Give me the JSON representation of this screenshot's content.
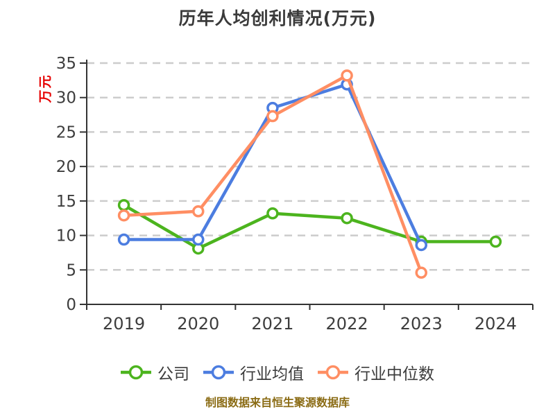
{
  "title": "历年人均创利情况(万元)",
  "footer": "制图数据来自恒生聚源数据库",
  "colors": {
    "background": "#ffffff",
    "title_text": "#3a3a3a",
    "axis_line": "#333333",
    "tick_label": "#3d3d3d",
    "grid_line": "#cccccc",
    "legend_text": "#3c3c3c",
    "ylabel_text": "#e60000",
    "footer_text": "#8b6c15",
    "marker_fill": "#ffffff"
  },
  "chart_data": {
    "type": "line",
    "title": "历年人均创利情况(万元)",
    "categories": [
      "2019",
      "2020",
      "2021",
      "2022",
      "2023",
      "2024"
    ],
    "series": [
      {
        "name": "公司",
        "color": "#4cb41e",
        "values": [
          14.4,
          8.1,
          13.2,
          12.5,
          9.1,
          9.1
        ]
      },
      {
        "name": "行业均值",
        "color": "#4c7de0",
        "values": [
          9.4,
          9.4,
          28.5,
          31.9,
          8.6,
          null
        ]
      },
      {
        "name": "行业中位数",
        "color": "#ff8e63",
        "values": [
          12.9,
          13.5,
          27.3,
          33.2,
          4.6,
          null
        ]
      }
    ],
    "xlabel": "",
    "ylabel": "万元",
    "ylim": [
      0,
      35
    ],
    "y_tick_interval": 5,
    "y_ticks": [
      0,
      5,
      10,
      15,
      20,
      25,
      30,
      35
    ],
    "grid": "horizontal-dashed",
    "legend_position": "bottom",
    "marker": "hollow-circle"
  }
}
